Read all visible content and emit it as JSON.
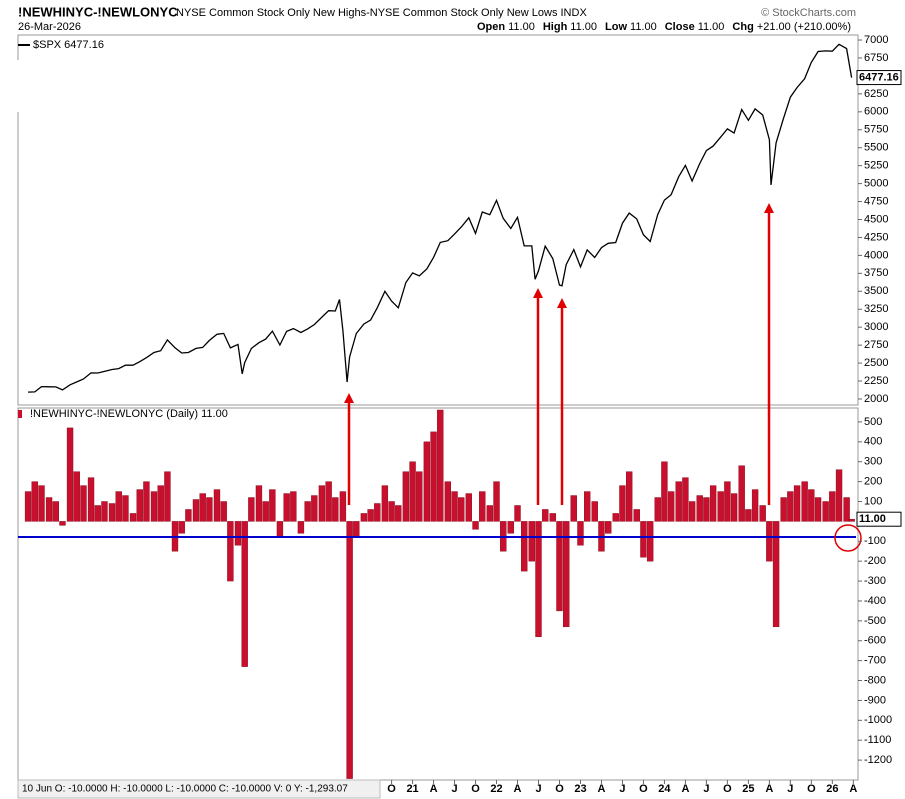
{
  "header": {
    "symbol": "!NEWHINYC-!NEWLONYC",
    "description": "NYSE Common Stock Only New Highs-NYSE Common Stock Only New Lows INDX",
    "source": "© StockCharts.com",
    "date": "26-Mar-2026",
    "ohlc": [
      {
        "label": "Open",
        "value": "11.00"
      },
      {
        "label": "High",
        "value": "11.00"
      },
      {
        "label": "Low",
        "value": "11.00"
      },
      {
        "label": "Close",
        "value": "11.00"
      },
      {
        "label": "Chg",
        "value": "+21.00 (+210.00%)"
      }
    ]
  },
  "info_box": "10 Jun O: -10.0000  H: -10.0000  L: -10.0000  C: -10.0000  V: 0  Y: -1,293.07",
  "chart_data": [
    {
      "type": "line",
      "x": [
        2016.42,
        2016.5,
        2016.58,
        2016.67,
        2016.75,
        2016.83,
        2016.92,
        2017.0,
        2017.08,
        2017.17,
        2017.25,
        2017.33,
        2017.42,
        2017.5,
        2017.58,
        2017.67,
        2017.75,
        2017.83,
        2017.92,
        2018.0,
        2018.08,
        2018.17,
        2018.25,
        2018.33,
        2018.42,
        2018.5,
        2018.58,
        2018.67,
        2018.75,
        2018.83,
        2018.92,
        2018.97,
        2019.0,
        2019.08,
        2019.17,
        2019.25,
        2019.33,
        2019.42,
        2019.5,
        2019.58,
        2019.67,
        2019.75,
        2019.83,
        2019.92,
        2020.0,
        2020.08,
        2020.13,
        2020.17,
        2020.22,
        2020.25,
        2020.33,
        2020.42,
        2020.5,
        2020.58,
        2020.67,
        2020.75,
        2020.83,
        2020.92,
        2021.0,
        2021.08,
        2021.17,
        2021.25,
        2021.33,
        2021.42,
        2021.5,
        2021.58,
        2021.67,
        2021.75,
        2021.83,
        2021.92,
        2022.0,
        2022.08,
        2022.17,
        2022.25,
        2022.33,
        2022.42,
        2022.46,
        2022.5,
        2022.58,
        2022.67,
        2022.75,
        2022.78,
        2022.83,
        2022.92,
        2023.0,
        2023.08,
        2023.17,
        2023.25,
        2023.33,
        2023.42,
        2023.5,
        2023.58,
        2023.67,
        2023.75,
        2023.83,
        2023.92,
        2024.0,
        2024.08,
        2024.17,
        2024.25,
        2024.33,
        2024.42,
        2024.5,
        2024.58,
        2024.67,
        2024.75,
        2024.83,
        2024.92,
        2025.0,
        2025.08,
        2025.17,
        2025.25,
        2025.27,
        2025.33,
        2025.42,
        2025.5,
        2025.58,
        2025.67,
        2025.75,
        2025.83,
        2025.92,
        2026.0,
        2026.08,
        2026.17,
        2026.23
      ],
      "series": [
        {
          "name": "$SPX 6477.16",
          "color": "#000000",
          "values": [
            2096,
            2098,
            2173,
            2170,
            2168,
            2126,
            2198,
            2238,
            2278,
            2363,
            2362,
            2384,
            2411,
            2423,
            2470,
            2471,
            2519,
            2575,
            2647,
            2673,
            2823,
            2713,
            2640,
            2648,
            2705,
            2718,
            2816,
            2901,
            2913,
            2711,
            2760,
            2351,
            2506,
            2704,
            2784,
            2834,
            2945,
            2752,
            2941,
            2980,
            2926,
            2976,
            3037,
            3141,
            3230,
            3225,
            3386,
            2954,
            2237,
            2584,
            2912,
            3044,
            3100,
            3271,
            3500,
            3363,
            3270,
            3622,
            3756,
            3714,
            3811,
            3973,
            4181,
            4204,
            4297,
            4395,
            4523,
            4307,
            4605,
            4567,
            4766,
            4516,
            4374,
            4530,
            4132,
            4132,
            3667,
            3785,
            4130,
            3955,
            3586,
            3577,
            3872,
            4080,
            3840,
            4077,
            3970,
            4109,
            4169,
            4180,
            4450,
            4589,
            4508,
            4288,
            4194,
            4568,
            4770,
            4846,
            5096,
            5254,
            5036,
            5278,
            5460,
            5522,
            5648,
            5762,
            5705,
            6032,
            5882,
            6041,
            5955,
            5612,
            4982,
            5569,
            5912,
            6205,
            6339,
            6460,
            6688,
            6840,
            6849,
            6845,
            6940,
            6880,
            6477
          ]
        }
      ],
      "last_value": 6477.16,
      "xlim": [
        2016.3,
        2026.27
      ],
      "ylim": [
        1916,
        7070
      ],
      "yticks": [
        2000,
        2250,
        2500,
        2750,
        3000,
        3250,
        3500,
        3750,
        4000,
        4250,
        4500,
        4750,
        5000,
        5250,
        5500,
        5750,
        6000,
        6250,
        6750,
        7000
      ]
    },
    {
      "type": "bar",
      "name": "!NEWHINYC-!NEWLONYC (Daily) 11.00",
      "color": "#c8102e",
      "x": [
        2016.42,
        2016.5,
        2016.58,
        2016.67,
        2016.75,
        2016.83,
        2016.92,
        2017.0,
        2017.08,
        2017.17,
        2017.25,
        2017.33,
        2017.42,
        2017.5,
        2017.58,
        2017.67,
        2017.75,
        2017.83,
        2017.92,
        2018.0,
        2018.08,
        2018.17,
        2018.25,
        2018.33,
        2018.42,
        2018.5,
        2018.58,
        2018.67,
        2018.75,
        2018.83,
        2018.92,
        2019.0,
        2019.08,
        2019.17,
        2019.25,
        2019.33,
        2019.42,
        2019.5,
        2019.58,
        2019.67,
        2019.75,
        2019.83,
        2019.92,
        2020.0,
        2020.08,
        2020.17,
        2020.25,
        2020.33,
        2020.42,
        2020.5,
        2020.58,
        2020.67,
        2020.75,
        2020.83,
        2020.92,
        2021.0,
        2021.08,
        2021.17,
        2021.25,
        2021.33,
        2021.42,
        2021.5,
        2021.58,
        2021.67,
        2021.75,
        2021.83,
        2021.92,
        2022.0,
        2022.08,
        2022.17,
        2022.25,
        2022.33,
        2022.42,
        2022.5,
        2022.58,
        2022.67,
        2022.75,
        2022.83,
        2022.92,
        2023.0,
        2023.08,
        2023.17,
        2023.25,
        2023.33,
        2023.42,
        2023.5,
        2023.58,
        2023.67,
        2023.75,
        2023.83,
        2023.92,
        2024.0,
        2024.08,
        2024.17,
        2024.25,
        2024.33,
        2024.42,
        2024.5,
        2024.58,
        2024.67,
        2024.75,
        2024.83,
        2024.92,
        2025.0,
        2025.08,
        2025.17,
        2025.25,
        2025.33,
        2025.42,
        2025.5,
        2025.58,
        2025.67,
        2025.75,
        2025.83,
        2025.92,
        2026.0,
        2026.08,
        2026.17,
        2026.23
      ],
      "values": [
        150,
        200,
        180,
        120,
        100,
        -20,
        470,
        250,
        180,
        220,
        80,
        100,
        90,
        150,
        130,
        40,
        160,
        200,
        150,
        180,
        250,
        -150,
        -60,
        60,
        110,
        140,
        120,
        160,
        100,
        -300,
        -120,
        -730,
        120,
        180,
        100,
        160,
        -80,
        140,
        150,
        -60,
        100,
        130,
        180,
        200,
        120,
        150,
        -1293,
        -80,
        40,
        60,
        90,
        180,
        100,
        80,
        250,
        300,
        250,
        400,
        450,
        560,
        200,
        150,
        120,
        140,
        -40,
        150,
        80,
        200,
        -150,
        -60,
        80,
        -250,
        -200,
        -580,
        60,
        40,
        -450,
        -530,
        130,
        -120,
        150,
        100,
        -150,
        -60,
        40,
        180,
        250,
        60,
        -180,
        -200,
        120,
        300,
        150,
        200,
        220,
        100,
        130,
        120,
        180,
        150,
        200,
        140,
        280,
        60,
        160,
        80,
        -200,
        -530,
        120,
        150,
        180,
        200,
        160,
        120,
        100,
        150,
        260,
        120,
        11
      ],
      "last_value": {
        "value": 11,
        "label": "11.00"
      },
      "xlim": [
        2016.3,
        2026.27
      ],
      "ylim": [
        -1300,
        570
      ],
      "yticks": [
        500,
        400,
        300,
        200,
        100,
        -100,
        -200,
        -300,
        -400,
        -500,
        -600,
        -700,
        -800,
        -900,
        -1000,
        -1100,
        -1200
      ],
      "xticks": [
        {
          "value": 2020.75,
          "label": "O"
        },
        {
          "value": 2021,
          "label": "21"
        },
        {
          "value": 2021.25,
          "label": "A"
        },
        {
          "value": 2021.5,
          "label": "J"
        },
        {
          "value": 2021.75,
          "label": "O"
        },
        {
          "value": 2022,
          "label": "22"
        },
        {
          "value": 2022.25,
          "label": "A"
        },
        {
          "value": 2022.5,
          "label": "J"
        },
        {
          "value": 2022.75,
          "label": "O"
        },
        {
          "value": 2023,
          "label": "23"
        },
        {
          "value": 2023.25,
          "label": "A"
        },
        {
          "value": 2023.5,
          "label": "J"
        },
        {
          "value": 2023.75,
          "label": "O"
        },
        {
          "value": 2024,
          "label": "24"
        },
        {
          "value": 2024.25,
          "label": "A"
        },
        {
          "value": 2024.5,
          "label": "J"
        },
        {
          "value": 2024.75,
          "label": "O"
        },
        {
          "value": 2025,
          "label": "25"
        },
        {
          "value": 2025.25,
          "label": "A"
        },
        {
          "value": 2025.5,
          "label": "J"
        },
        {
          "value": 2025.75,
          "label": "O"
        },
        {
          "value": 2026,
          "label": "26"
        },
        {
          "value": 2026.25,
          "label": "A"
        }
      ]
    }
  ]
}
